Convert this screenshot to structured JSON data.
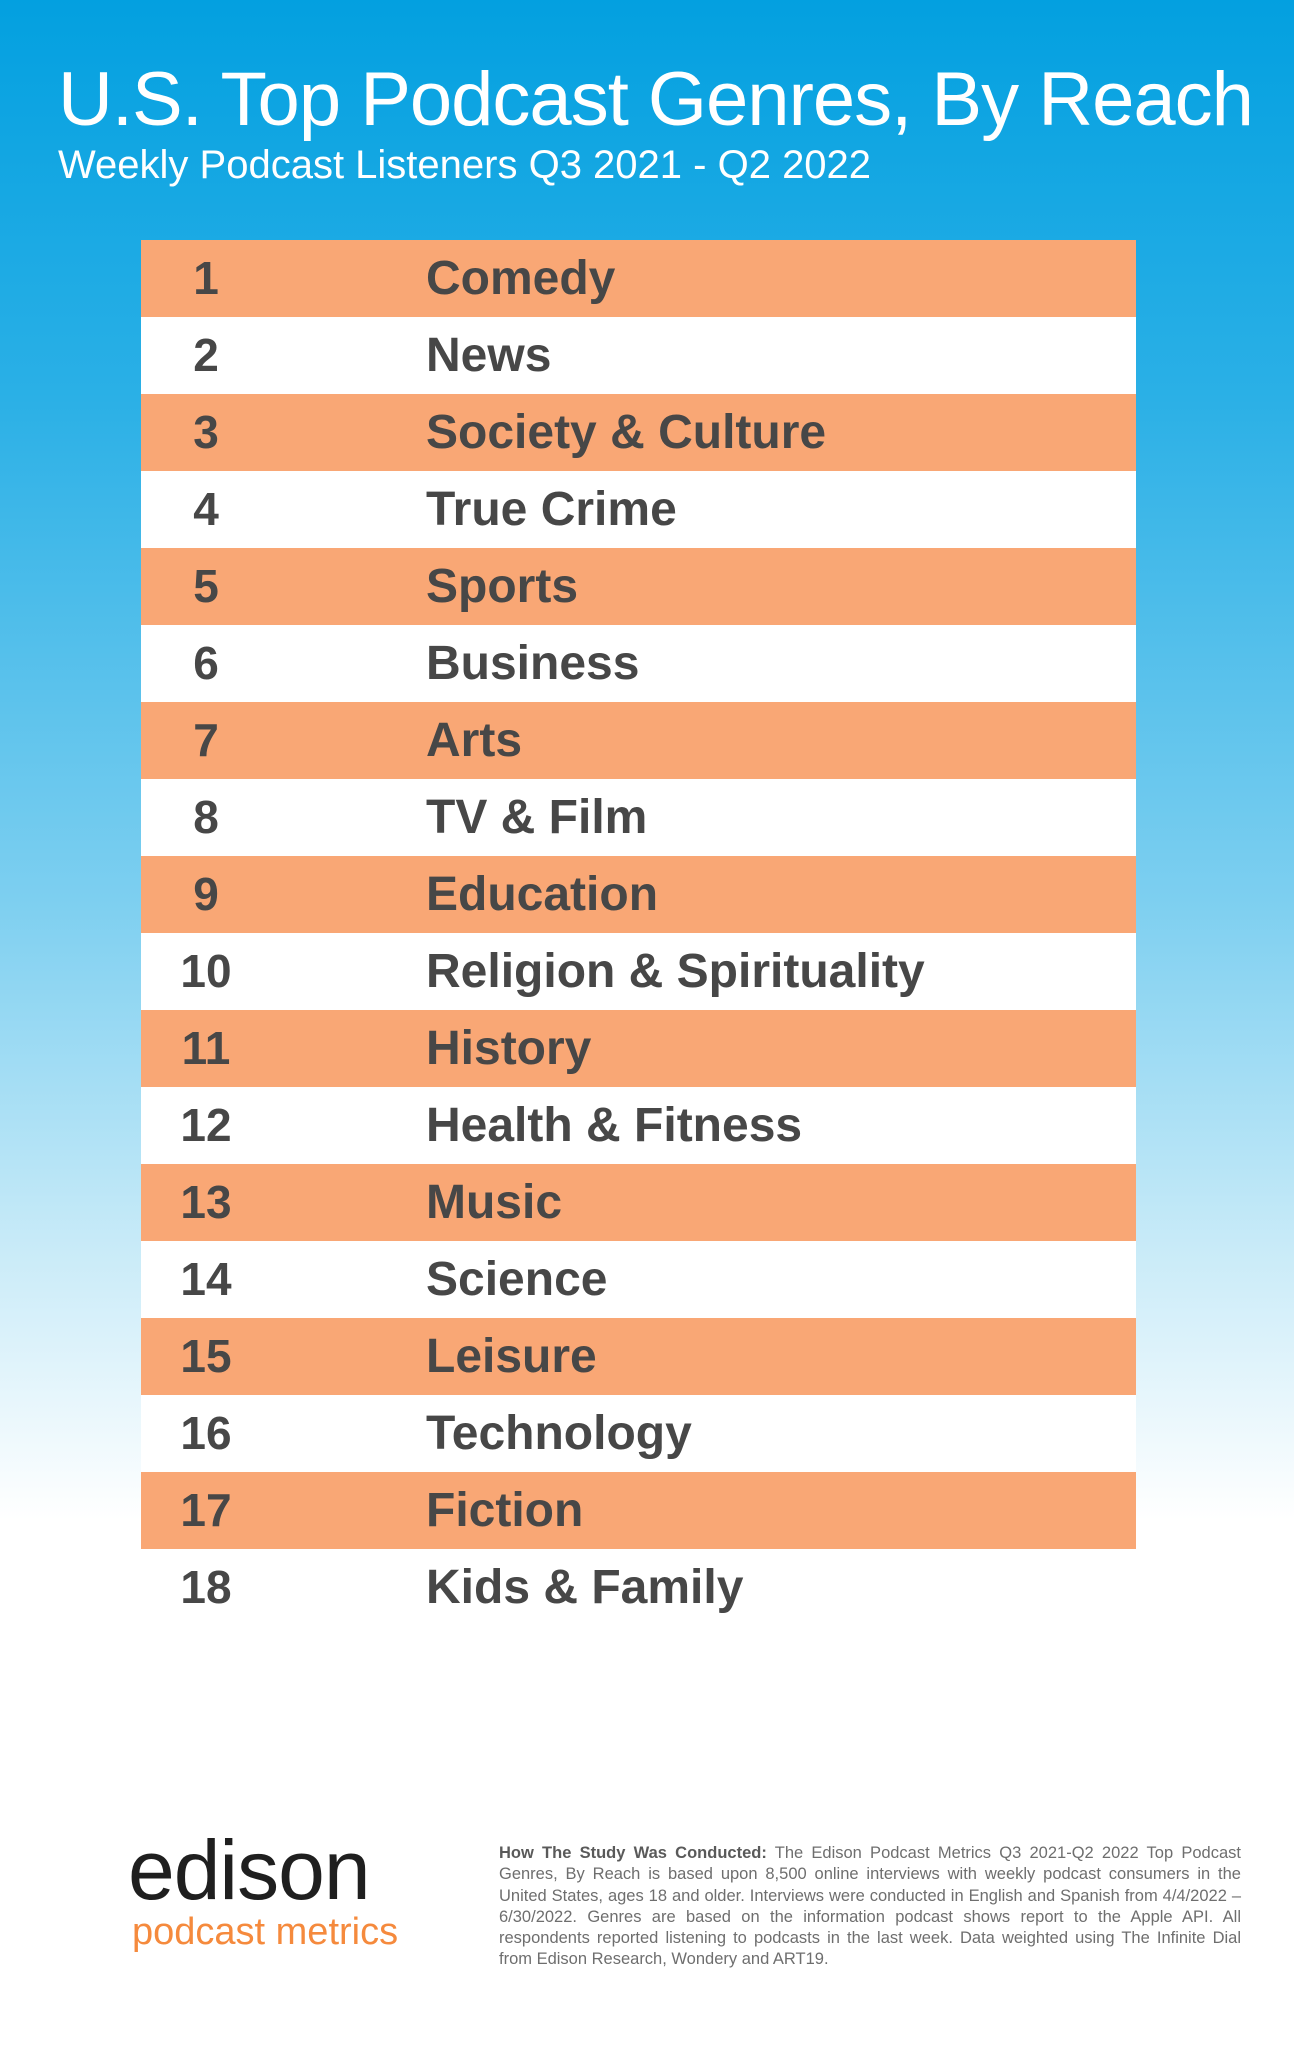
{
  "header": {
    "title": "U.S. Top Podcast Genres, By Reach",
    "subtitle": "Weekly Podcast Listeners Q3 2021 - Q2 2022"
  },
  "colors": {
    "accent_row": "#f9a775",
    "text": "#474747",
    "background_top": "#03a0e0",
    "logo_orange": "#f58a3d"
  },
  "rankings": [
    {
      "rank": "1",
      "genre": "Comedy"
    },
    {
      "rank": "2",
      "genre": "News"
    },
    {
      "rank": "3",
      "genre": "Society & Culture"
    },
    {
      "rank": "4",
      "genre": "True Crime"
    },
    {
      "rank": "5",
      "genre": "Sports"
    },
    {
      "rank": "6",
      "genre": "Business"
    },
    {
      "rank": "7",
      "genre": "Arts"
    },
    {
      "rank": "8",
      "genre": "TV & Film"
    },
    {
      "rank": "9",
      "genre": "Education"
    },
    {
      "rank": "10",
      "genre": "Religion & Spirituality"
    },
    {
      "rank": "11",
      "genre": "History"
    },
    {
      "rank": "12",
      "genre": "Health & Fitness"
    },
    {
      "rank": "13",
      "genre": "Music"
    },
    {
      "rank": "14",
      "genre": "Science"
    },
    {
      "rank": "15",
      "genre": "Leisure"
    },
    {
      "rank": "16",
      "genre": "Technology"
    },
    {
      "rank": "17",
      "genre": "Fiction"
    },
    {
      "rank": "18",
      "genre": "Kids & Family"
    }
  ],
  "footer": {
    "logo_brand": "edison",
    "logo_sub": "podcast metrics",
    "method_label": "How The Study Was Conducted:",
    "method_text": " The Edison Podcast Metrics Q3 2021-Q2 2022 Top Podcast Genres, By Reach is based upon 8,500 online interviews with weekly podcast consumers in the United States, ages 18 and older. Interviews were conducted in English and Spanish from 4/4/2022 – 6/30/2022. Genres are based on the information podcast shows report to the Apple API. All respondents reported listening to podcasts in the last week. Data weighted using The Infinite Dial from Edison Research, Wondery and ART19."
  }
}
